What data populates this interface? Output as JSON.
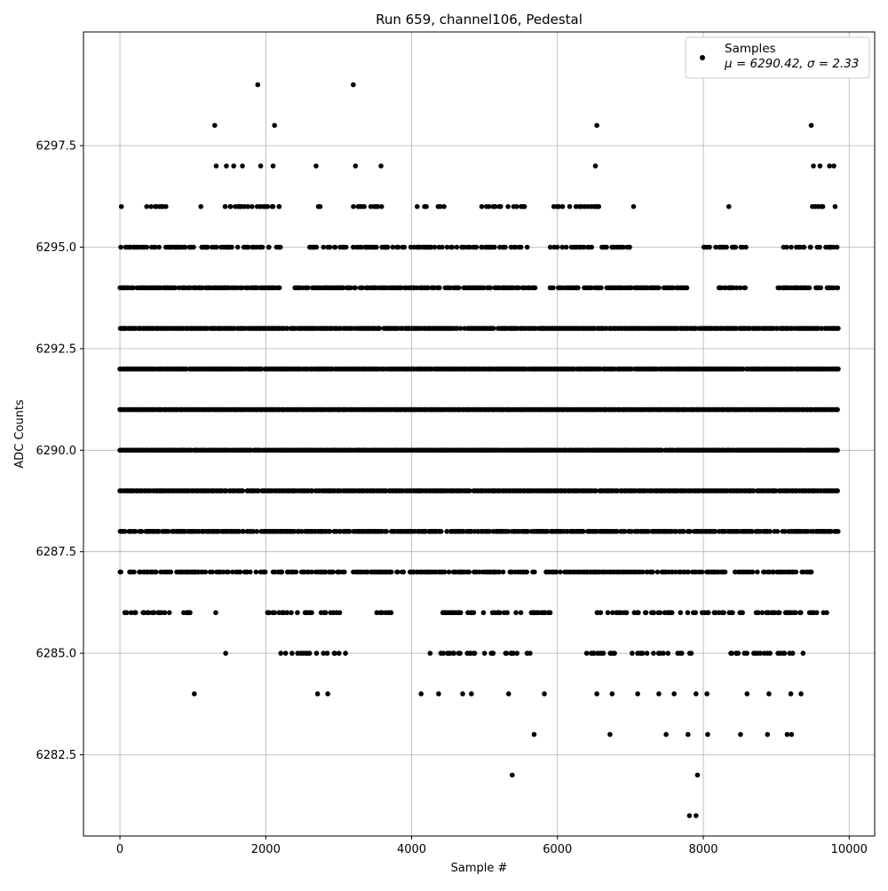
{
  "chart_data": {
    "type": "scatter",
    "title": "Run 659, channel106, Pedestal",
    "xlabel": "Sample #",
    "ylabel": "ADC Counts",
    "xlim": [
      -500,
      10350
    ],
    "ylim": [
      6280.5,
      6300.3
    ],
    "x_ticks": [
      0,
      2000,
      4000,
      6000,
      8000,
      10000
    ],
    "x_tick_labels": [
      "0",
      "2000",
      "4000",
      "6000",
      "8000",
      "10000"
    ],
    "y_ticks": [
      6282.5,
      6285.0,
      6287.5,
      6290.0,
      6292.5,
      6295.0,
      6297.5
    ],
    "y_tick_labels": [
      "6282.5",
      "6285.0",
      "6287.5",
      "6290.0",
      "6292.5",
      "6295.0",
      "6297.5"
    ],
    "grid": true,
    "legend": {
      "placement": "top-right",
      "entries": [
        {
          "label": "Samples",
          "stats": "μ = 6290.42, σ = 2.33"
        }
      ]
    },
    "colors": {
      "points": "#000000",
      "grid": "#b0b0b0"
    },
    "series": [
      {
        "name": "Samples",
        "sample_count": 9850,
        "mean": 6290.42,
        "sigma": 2.33,
        "points": [
          [
            1300,
            6298
          ],
          [
            2120,
            6298
          ],
          [
            6540,
            6298
          ],
          [
            9480,
            6298
          ],
          [
            1890,
            6299
          ],
          [
            3200,
            6299
          ],
          [
            7810,
            6281
          ],
          [
            7900,
            6281
          ],
          [
            7920,
            6282
          ],
          [
            5380,
            6282
          ],
          [
            5680,
            6283
          ],
          [
            6720,
            6283
          ],
          [
            7490,
            6283
          ],
          [
            7790,
            6283
          ],
          [
            8060,
            6283
          ],
          [
            8510,
            6283
          ],
          [
            8880,
            6283
          ],
          [
            9150,
            6283
          ],
          [
            9210,
            6283
          ],
          [
            1020,
            6284
          ],
          [
            2710,
            6284
          ],
          [
            2850,
            6284
          ],
          [
            4130,
            6284
          ],
          [
            4370,
            6284
          ],
          [
            4700,
            6284
          ],
          [
            4820,
            6284
          ],
          [
            5330,
            6284
          ],
          [
            5820,
            6284
          ],
          [
            6540,
            6284
          ],
          [
            6750,
            6284
          ],
          [
            7100,
            6284
          ],
          [
            7390,
            6284
          ],
          [
            7600,
            6284
          ],
          [
            7900,
            6284
          ],
          [
            8050,
            6284
          ],
          [
            8600,
            6284
          ],
          [
            8900,
            6284
          ],
          [
            9200,
            6284
          ],
          [
            9340,
            6284
          ],
          [
            6520,
            6297
          ],
          [
            1320,
            6297
          ],
          [
            1460,
            6297
          ],
          [
            1560,
            6297
          ],
          [
            1680,
            6297
          ],
          [
            1930,
            6297
          ],
          [
            2100,
            6297
          ],
          [
            2690,
            6297
          ],
          [
            3230,
            6297
          ],
          [
            3580,
            6297
          ],
          [
            9510,
            6297
          ],
          [
            9600,
            6297
          ],
          [
            9730,
            6297
          ],
          [
            9790,
            6297
          ],
          [
            20,
            6296
          ],
          [
            1110,
            6296
          ],
          [
            8350,
            6296
          ]
        ],
        "bands": [
          {
            "y": 6285,
            "segments": [
              [
                1450,
                1450
              ],
              [
                2200,
                3100
              ],
              [
                4200,
                4900
              ],
              [
                5000,
                5700
              ],
              [
                6400,
                6800
              ],
              [
                7000,
                7900
              ],
              [
                8300,
                9450
              ]
            ],
            "density": 0.35
          },
          {
            "y": 6286,
            "segments": [
              [
                60,
                700
              ],
              [
                800,
                1000
              ],
              [
                1270,
                1330
              ],
              [
                2000,
                3050
              ],
              [
                3500,
                3800
              ],
              [
                4400,
                5000
              ],
              [
                5100,
                6000
              ],
              [
                6500,
                9700
              ]
            ],
            "density": 0.45
          },
          {
            "y": 6287,
            "segments": [
              [
                0,
                2000
              ],
              [
                2100,
                3100
              ],
              [
                3200,
                5700
              ],
              [
                5800,
                9500
              ]
            ],
            "density": 0.6
          },
          {
            "y": 6288,
            "segments": [
              [
                0,
                9850
              ]
            ],
            "density": 0.8
          },
          {
            "y": 6289,
            "segments": [
              [
                0,
                9850
              ]
            ],
            "density": 0.95
          },
          {
            "y": 6290,
            "segments": [
              [
                0,
                9850
              ]
            ],
            "density": 0.95
          },
          {
            "y": 6291,
            "segments": [
              [
                0,
                9850
              ]
            ],
            "density": 1.0
          },
          {
            "y": 6292,
            "segments": [
              [
                0,
                9850
              ]
            ],
            "density": 0.95
          },
          {
            "y": 6293,
            "segments": [
              [
                0,
                9850
              ]
            ],
            "density": 0.9
          },
          {
            "y": 6294,
            "segments": [
              [
                0,
                2200
              ],
              [
                2400,
                5700
              ],
              [
                5900,
                7800
              ],
              [
                8200,
                8600
              ],
              [
                9000,
                9850
              ]
            ],
            "density": 0.75
          },
          {
            "y": 6295,
            "segments": [
              [
                0,
                2200
              ],
              [
                2600,
                5600
              ],
              [
                5900,
                7000
              ],
              [
                8000,
                8600
              ],
              [
                9100,
                9850
              ]
            ],
            "density": 0.5
          },
          {
            "y": 6296,
            "segments": [
              [
                300,
                700
              ],
              [
                1400,
                2200
              ],
              [
                2700,
                2800
              ],
              [
                3200,
                3600
              ],
              [
                4000,
                4500
              ],
              [
                4950,
                5550
              ],
              [
                5950,
                6600
              ],
              [
                6950,
                7050
              ],
              [
                9480,
                9820
              ]
            ],
            "density": 0.35
          }
        ]
      }
    ]
  }
}
